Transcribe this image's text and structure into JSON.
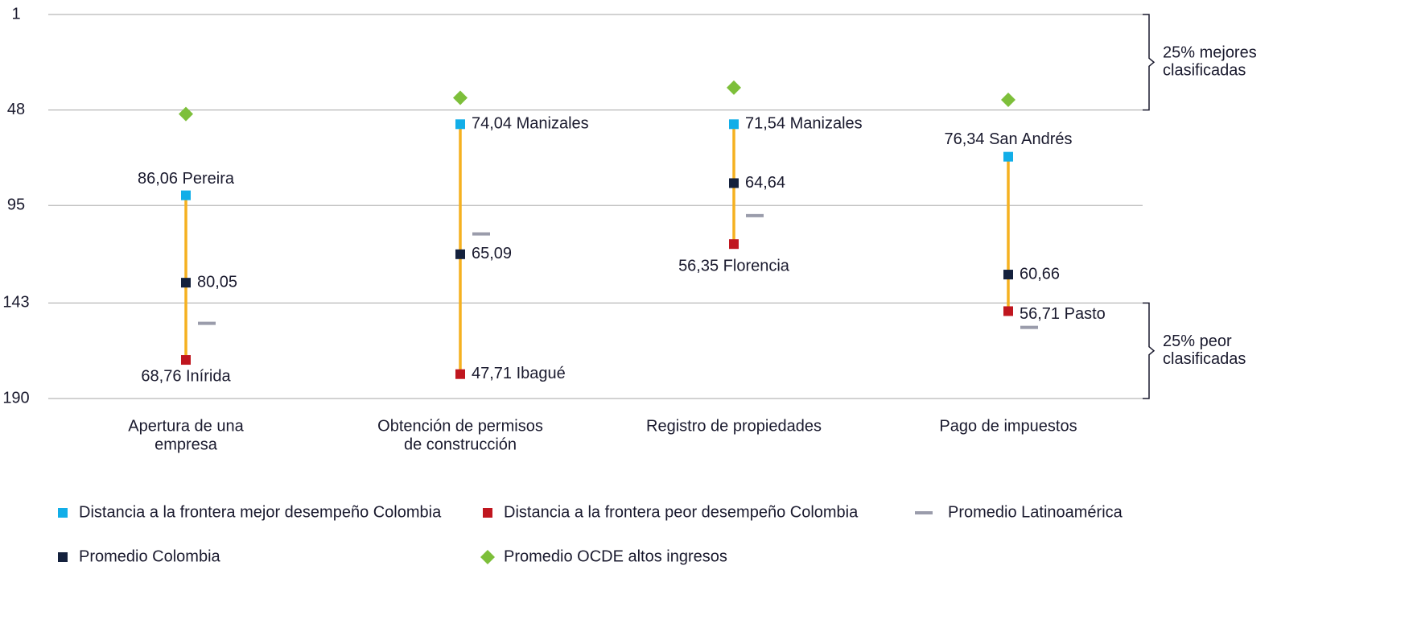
{
  "chart_data": {
    "type": "range-dot",
    "categories": [
      [
        "Apertura de una",
        "empresa"
      ],
      [
        "Obtención de permisos",
        "de construcción"
      ],
      [
        "Registro de propiedades"
      ],
      [
        "Pago de impuestos"
      ]
    ],
    "ylim": [
      190,
      1
    ],
    "yticks": [
      1,
      48,
      95,
      143,
      190
    ],
    "grid": true,
    "range_color": "#f5b120",
    "series": [
      {
        "name": "Distancia a la frontera mejor desempeño Colombia",
        "color": "#12aee8",
        "marker": "square",
        "values": [
          90,
          55,
          55,
          71
        ],
        "annotations": [
          "86,06 Pereira",
          "74,04 Manizales",
          "71,54 Manizales",
          "76,34 San Andrés"
        ]
      },
      {
        "name": "Distancia a la frontera peor desempeño Colombia",
        "color": "#c0161f",
        "marker": "square",
        "values": [
          171,
          178,
          114,
          147
        ],
        "annotations": [
          "68,76 Inírida",
          "47,71 Ibagué",
          "56,35 Florencia",
          "56,71 Pasto"
        ]
      },
      {
        "name": "Promedio Latinoamérica",
        "color": "#9a9cab",
        "marker": "dash",
        "values": [
          153,
          109,
          100,
          155
        ]
      },
      {
        "name": "Promedio Colombia",
        "color": "#14213d",
        "marker": "square",
        "values": [
          133,
          119,
          84,
          129
        ],
        "annotations": [
          "80,05",
          "65,09",
          "64,64",
          "60,66"
        ]
      },
      {
        "name": "Promedio OCDE altos ingresos",
        "color": "#7dbf3a",
        "marker": "diamond",
        "values": [
          50,
          42,
          37,
          43
        ]
      }
    ],
    "brackets": [
      {
        "range": [
          1,
          48
        ],
        "lines": [
          "25% mejores",
          "clasificadas"
        ]
      },
      {
        "range": [
          143,
          190
        ],
        "lines": [
          "25% peor",
          "clasificadas"
        ]
      }
    ]
  }
}
